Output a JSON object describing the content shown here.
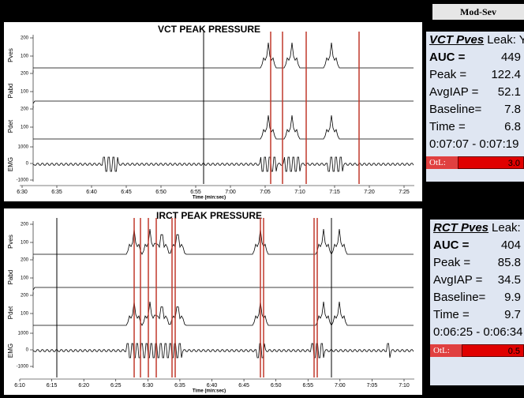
{
  "header": "Mod-Sev",
  "panels": [
    {
      "title": "VCT PEAK PRESSURE",
      "time_label": "Time (min:sec)",
      "channels": [
        {
          "label": "Pves",
          "ticks": [
            "200",
            "100"
          ]
        },
        {
          "label": "Pabd",
          "ticks": [
            "200",
            "100"
          ]
        },
        {
          "label": "Pdet",
          "ticks": [
            "200",
            "100"
          ]
        },
        {
          "label": "EMG",
          "ticks": [
            "1000",
            "0",
            "-1000"
          ]
        }
      ],
      "time_ticks": [
        "6:30",
        "6:35",
        "6:40",
        "6:45",
        "6:50",
        "6:55",
        "7:00",
        "7:05",
        "7:10",
        "7:15",
        "7:20",
        "7:25"
      ],
      "summary": {
        "name": "VCT Pves",
        "leak": "Leak: Yes",
        "rows": [
          [
            "AUC =",
            "449"
          ],
          [
            "Peak =",
            "122.4"
          ],
          [
            "AvgIAP =",
            "52.1"
          ],
          [
            "Baseline=",
            "7.8"
          ],
          [
            "Time =",
            "6.8"
          ]
        ],
        "range": "0:07:07 - 0:07:19",
        "otl_label": "OtL:",
        "otl_value": "3.0"
      }
    },
    {
      "title": "IRCT PEAK PRESSURE",
      "time_label": "Time (min:sec)",
      "channels": [
        {
          "label": "Pves",
          "ticks": [
            "200",
            "100"
          ]
        },
        {
          "label": "Pabd",
          "ticks": [
            "200",
            "100"
          ]
        },
        {
          "label": "Pdet",
          "ticks": [
            "200",
            "100"
          ]
        },
        {
          "label": "EMG",
          "ticks": [
            "1000",
            "0",
            "-1000"
          ]
        }
      ],
      "time_ticks": [
        "6:10",
        "6:15",
        "6:20",
        "6:25",
        "6:30",
        "6:35",
        "6:40",
        "6:45",
        "6:50",
        "6:55",
        "7:00",
        "7:05",
        "7:10"
      ],
      "summary": {
        "name": "RCT Pves",
        "leak": "Leak: Yes",
        "rows": [
          [
            "AUC =",
            "404"
          ],
          [
            "Peak =",
            "85.8"
          ],
          [
            "AvgIAP =",
            "34.5"
          ],
          [
            "Baseline=",
            "9.9"
          ],
          [
            "Time =",
            "9.7"
          ]
        ],
        "range": "0:06:25 - 0:06:34",
        "otl_label": "OtL:",
        "otl_value": "0.5"
      }
    }
  ]
}
